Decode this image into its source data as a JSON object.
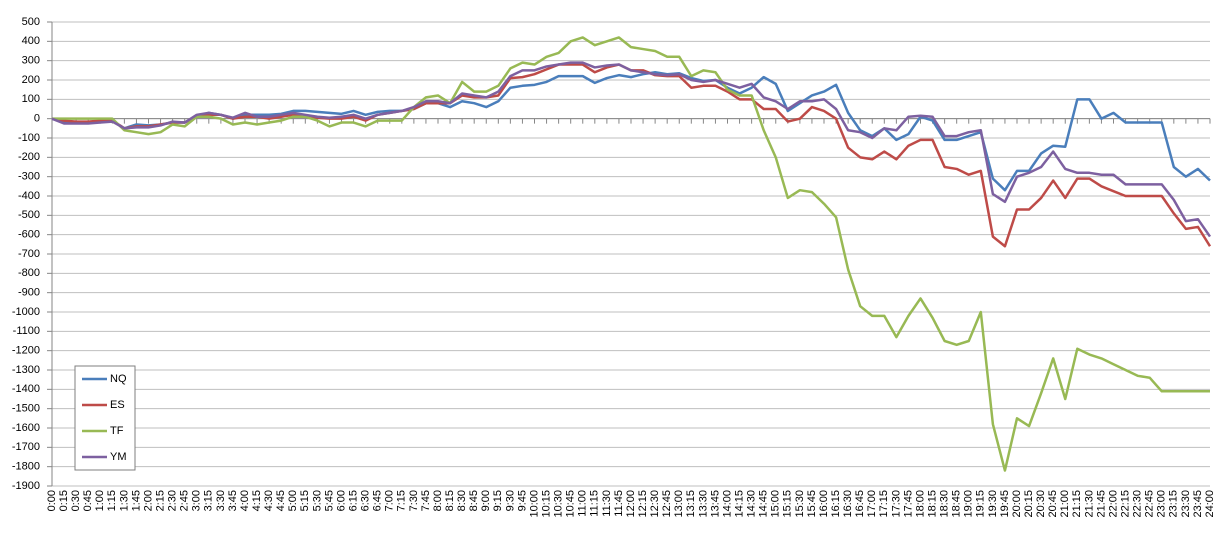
{
  "chart_data": {
    "type": "line",
    "categories": [
      "0:00",
      "0:15",
      "0:30",
      "0:45",
      "1:00",
      "1:15",
      "1:30",
      "1:45",
      "2:00",
      "2:15",
      "2:30",
      "2:45",
      "3:00",
      "3:15",
      "3:30",
      "3:45",
      "4:00",
      "4:15",
      "4:30",
      "4:45",
      "5:00",
      "5:15",
      "5:30",
      "5:45",
      "6:00",
      "6:15",
      "6:30",
      "6:45",
      "7:00",
      "7:15",
      "7:30",
      "7:45",
      "8:00",
      "8:15",
      "8:30",
      "8:45",
      "9:00",
      "9:15",
      "9:30",
      "9:45",
      "10:00",
      "10:15",
      "10:30",
      "10:45",
      "11:00",
      "11:15",
      "11:30",
      "11:45",
      "12:00",
      "12:15",
      "12:30",
      "12:45",
      "13:00",
      "13:15",
      "13:30",
      "13:45",
      "14:00",
      "14:15",
      "14:30",
      "14:45",
      "15:00",
      "15:15",
      "15:30",
      "15:45",
      "16:00",
      "16:15",
      "16:30",
      "16:45",
      "17:00",
      "17:15",
      "17:30",
      "17:45",
      "18:00",
      "18:15",
      "18:30",
      "18:45",
      "19:00",
      "19:15",
      "19:30",
      "19:45",
      "20:00",
      "20:15",
      "20:30",
      "20:45",
      "21:00",
      "21:15",
      "21:30",
      "21:45",
      "22:00",
      "22:15",
      "22:30",
      "22:45",
      "23:00",
      "23:15",
      "23:30",
      "23:45",
      "24:00"
    ],
    "series": [
      {
        "name": "NQ",
        "color": "#4a7ebb",
        "values": [
          0,
          -20,
          -20,
          -20,
          -15,
          -10,
          -50,
          -30,
          -35,
          -30,
          -20,
          -20,
          10,
          30,
          20,
          0,
          20,
          20,
          20,
          25,
          40,
          40,
          35,
          30,
          25,
          40,
          20,
          35,
          40,
          40,
          50,
          80,
          80,
          60,
          90,
          80,
          60,
          90,
          160,
          170,
          175,
          190,
          220,
          220,
          220,
          185,
          210,
          225,
          215,
          230,
          240,
          230,
          235,
          210,
          195,
          200,
          160,
          130,
          160,
          215,
          180,
          40,
          80,
          120,
          140,
          175,
          30,
          -60,
          -90,
          -50,
          -110,
          -80,
          10,
          -10,
          -110,
          -110,
          -90,
          -70,
          -310,
          -370,
          -270,
          -270,
          -180,
          -140,
          -145,
          100,
          100,
          0,
          30,
          -20,
          -20,
          -20,
          -20,
          -250,
          -300,
          -260,
          -320
        ]
      },
      {
        "name": "ES",
        "color": "#be4b48",
        "values": [
          0,
          -10,
          -15,
          -15,
          -10,
          -10,
          -50,
          -40,
          -40,
          -30,
          -20,
          -20,
          10,
          20,
          20,
          0,
          10,
          10,
          0,
          10,
          20,
          10,
          5,
          0,
          0,
          10,
          -10,
          20,
          30,
          40,
          50,
          80,
          80,
          80,
          120,
          110,
          110,
          120,
          210,
          215,
          230,
          255,
          280,
          280,
          280,
          240,
          265,
          280,
          250,
          250,
          225,
          220,
          220,
          160,
          170,
          170,
          140,
          100,
          100,
          50,
          50,
          -15,
          0,
          60,
          40,
          0,
          -150,
          -200,
          -210,
          -170,
          -210,
          -140,
          -110,
          -110,
          -250,
          -260,
          -290,
          -270,
          -610,
          -660,
          -470,
          -470,
          -410,
          -320,
          -410,
          -310,
          -310,
          -350,
          -375,
          -400,
          -400,
          -400,
          -400,
          -490,
          -570,
          -560,
          -660
        ]
      },
      {
        "name": "TF",
        "color": "#98b954",
        "values": [
          0,
          0,
          0,
          0,
          0,
          0,
          -60,
          -70,
          -80,
          -70,
          -30,
          -40,
          10,
          10,
          0,
          -30,
          -20,
          -30,
          -20,
          -10,
          10,
          10,
          -10,
          -40,
          -20,
          -20,
          -40,
          -10,
          -10,
          -10,
          60,
          110,
          120,
          80,
          190,
          140,
          140,
          170,
          260,
          290,
          280,
          320,
          340,
          400,
          420,
          380,
          400,
          420,
          370,
          360,
          350,
          320,
          320,
          220,
          250,
          240,
          150,
          120,
          120,
          -60,
          -200,
          -410,
          -370,
          -380,
          -440,
          -510,
          -780,
          -970,
          -1020,
          -1020,
          -1130,
          -1020,
          -930,
          -1030,
          -1150,
          -1170,
          -1150,
          -1000,
          -1580,
          -1820,
          -1550,
          -1590,
          -1420,
          -1240,
          -1450,
          -1190,
          -1220,
          -1240,
          -1270,
          -1300,
          -1330,
          -1340,
          -1410,
          -1410,
          -1410,
          -1410,
          -1410
        ]
      },
      {
        "name": "YM",
        "color": "#7d60a0",
        "values": [
          0,
          -25,
          -25,
          -25,
          -20,
          -15,
          -50,
          -45,
          -45,
          -35,
          -15,
          -20,
          20,
          30,
          20,
          5,
          30,
          10,
          10,
          20,
          30,
          20,
          10,
          5,
          10,
          20,
          0,
          20,
          30,
          40,
          60,
          90,
          90,
          80,
          130,
          120,
          110,
          140,
          220,
          250,
          250,
          270,
          280,
          290,
          290,
          265,
          275,
          280,
          250,
          240,
          230,
          225,
          230,
          200,
          190,
          200,
          180,
          160,
          180,
          110,
          90,
          50,
          90,
          90,
          100,
          50,
          -60,
          -70,
          -100,
          -50,
          -60,
          10,
          15,
          10,
          -90,
          -90,
          -70,
          -60,
          -390,
          -430,
          -300,
          -280,
          -250,
          -170,
          -260,
          -280,
          -280,
          -290,
          -290,
          -340,
          -340,
          -340,
          -340,
          -420,
          -530,
          -520,
          -610
        ]
      }
    ],
    "ylim": [
      -1900,
      500
    ],
    "yticks": [
      500,
      400,
      300,
      200,
      100,
      0,
      -100,
      -200,
      -300,
      -400,
      -500,
      -600,
      -700,
      -800,
      -900,
      -1000,
      -1100,
      -1200,
      -1300,
      -1400,
      -1500,
      -1600,
      -1700,
      -1800,
      -1900
    ],
    "grid": true,
    "legend": "lower-left"
  }
}
